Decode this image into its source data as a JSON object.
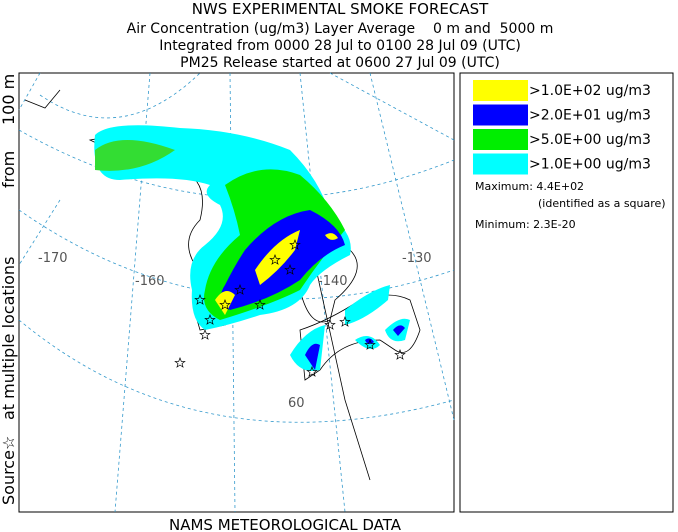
{
  "header": {
    "title": "NWS EXPERIMENTAL SMOKE FORECAST",
    "lines": [
      "Air Concentration (ug/m3) Layer Average    0 m and  5000 m",
      "Integrated from 0000 28 Jul to 0100 28 Jul 09 (UTC)",
      "PM25 Release started at 0600 27 Jul 09 (UTC)"
    ]
  },
  "side_label": [
    "Source☆",
    "at multiple locations",
    "from",
    "100 m"
  ],
  "footer": "NAMS METEOROLOGICAL DATA",
  "legend": {
    "items": [
      {
        "label": ">1.0E+02 ug/m3",
        "color": "#ffff00"
      },
      {
        "label": ">2.0E+01 ug/m3",
        "color": "#0000ff"
      },
      {
        "label": ">5.0E+00 ug/m3",
        "color": "#00ee00"
      },
      {
        "label": ">1.0E+00 ug/m3",
        "color": "#00ffff"
      }
    ],
    "maximum": "Maximum: 4.4E+02",
    "maximum_note": "(identified as a square)",
    "minimum": "Minimum: 2.3E-20"
  },
  "map": {
    "labels": [
      "-170",
      "-160",
      "-140",
      "-130",
      "60"
    ]
  }
}
